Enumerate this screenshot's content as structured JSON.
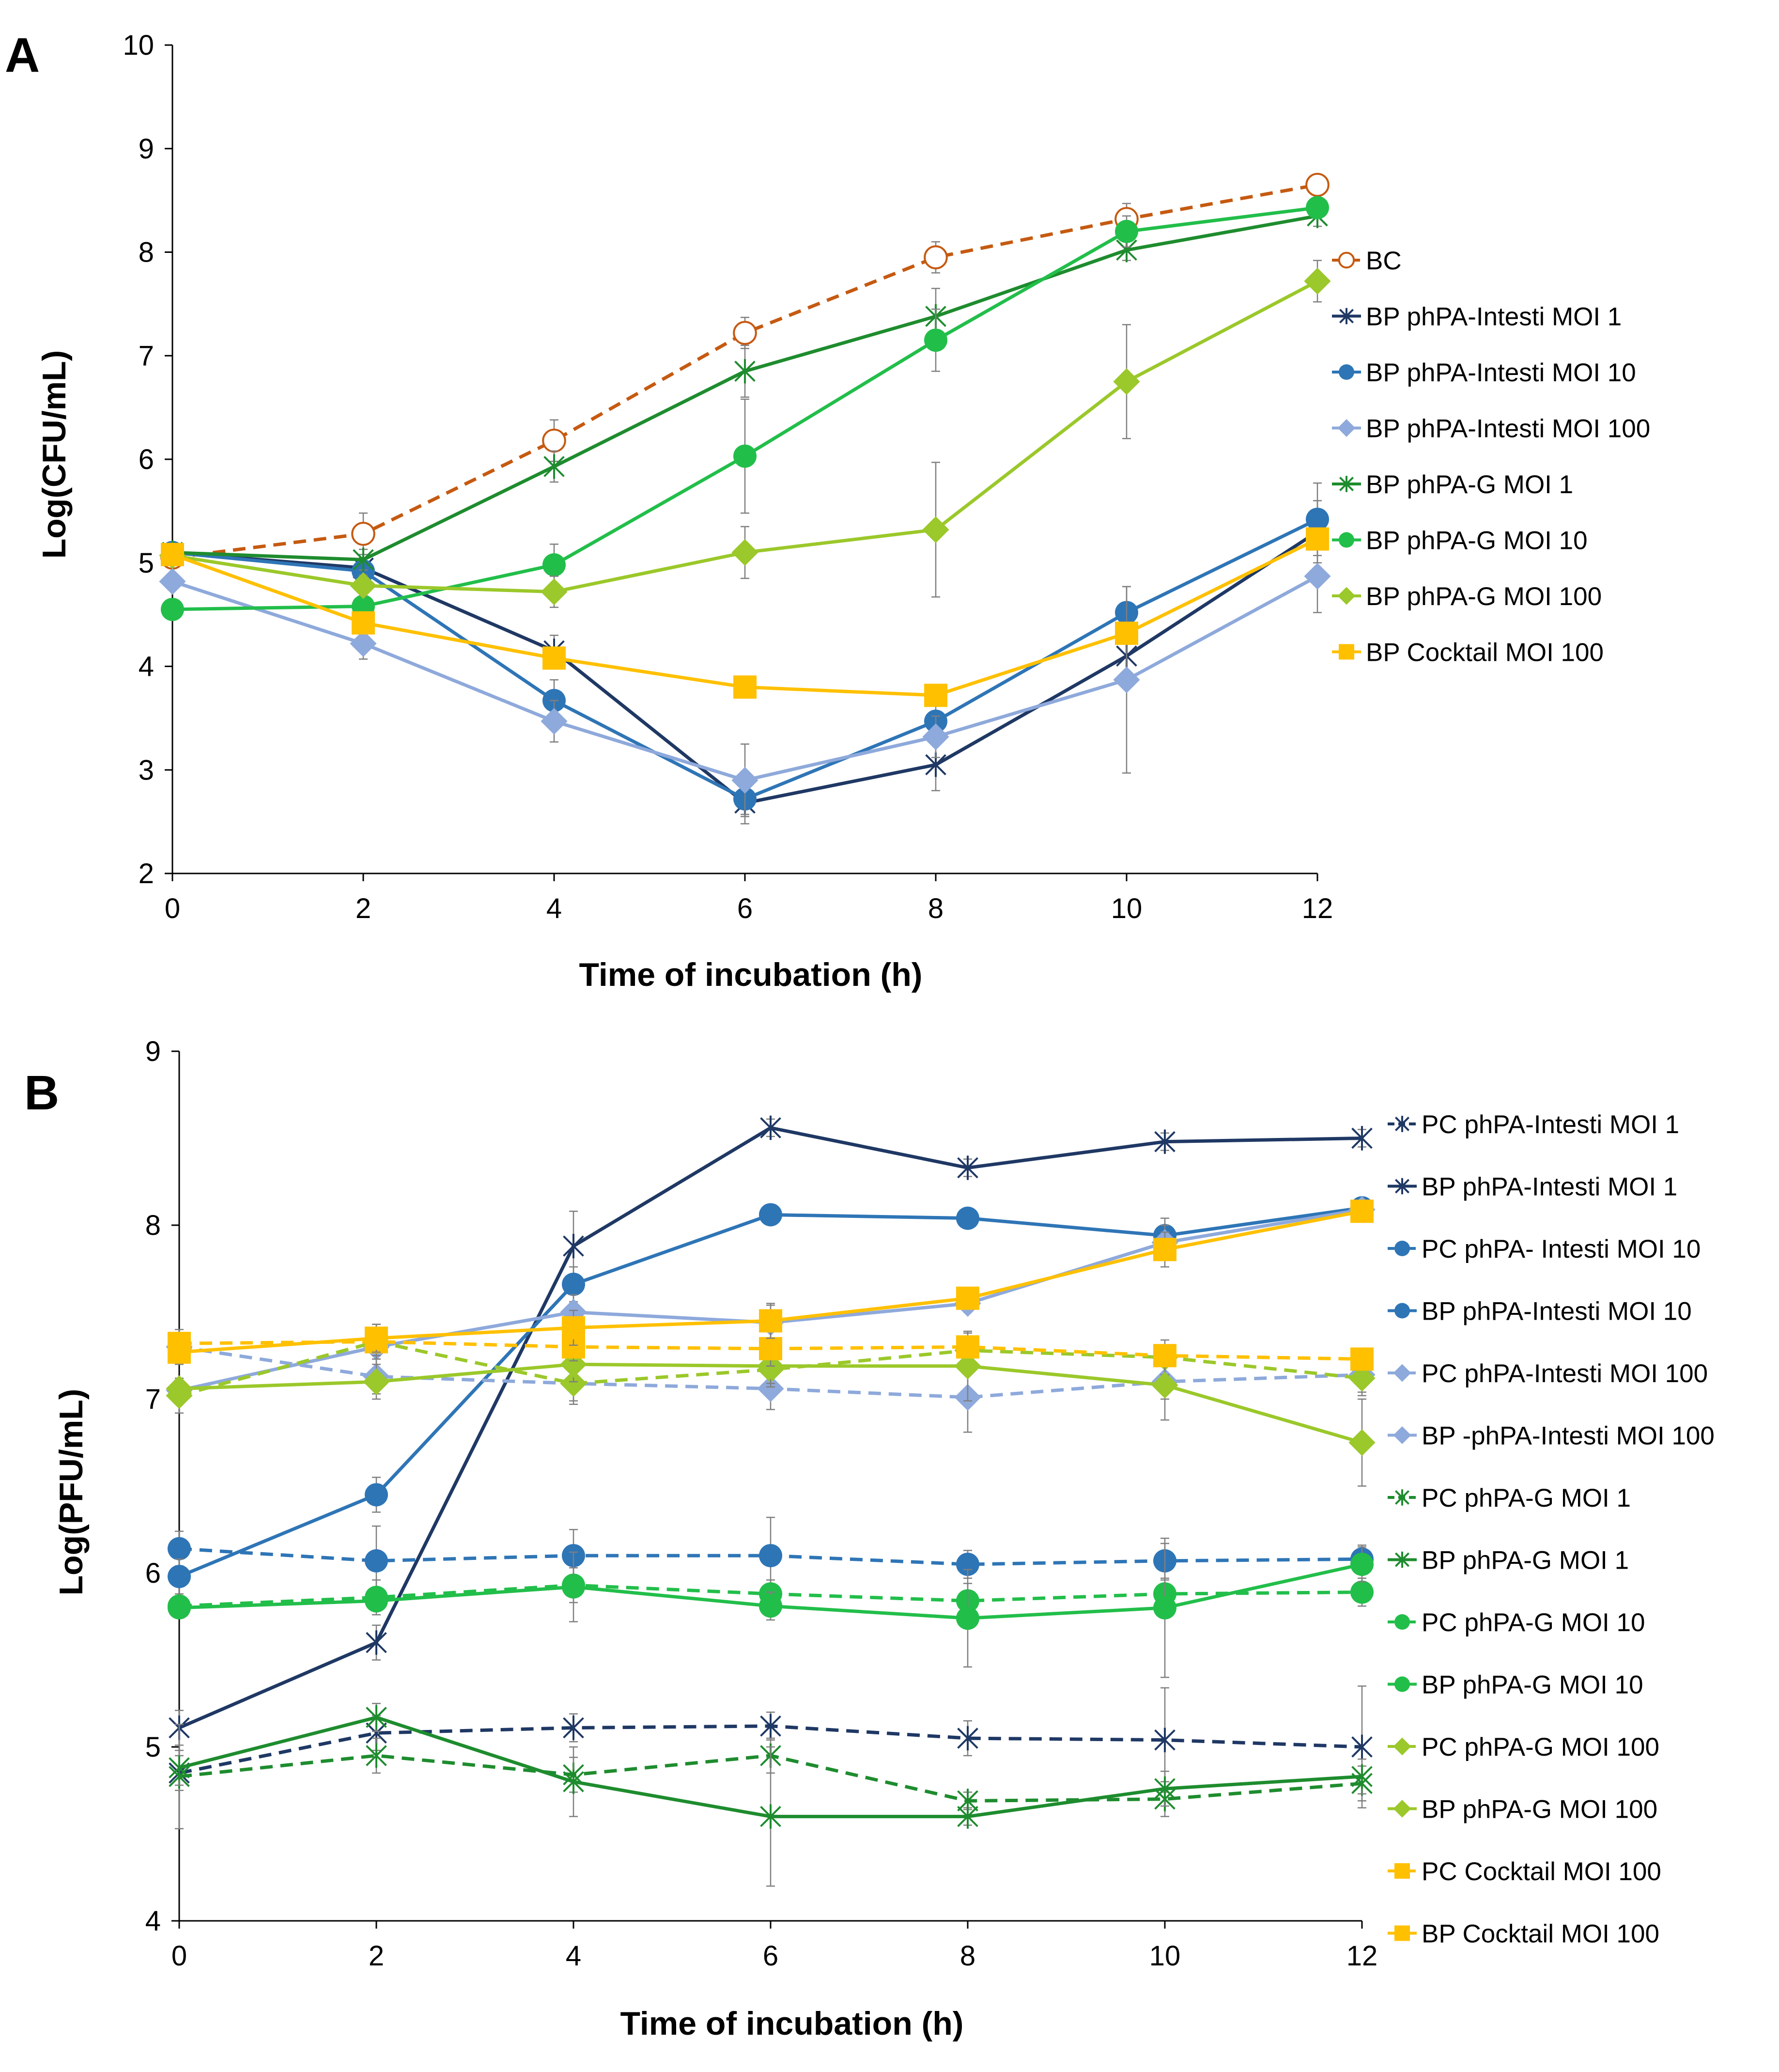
{
  "figure_title": "Phage kinetics figure",
  "chart_data": [
    {
      "panel_label": "A",
      "type": "line",
      "xlabel": "Time of incubation (h)",
      "ylabel": "Log(CFU/mL)",
      "x": [
        0,
        2,
        4,
        6,
        8,
        10,
        12
      ],
      "xlim": [
        0,
        12
      ],
      "ylim": [
        2,
        10
      ],
      "xticks": [
        "0",
        "2",
        "4",
        "6",
        "8",
        "10",
        "12"
      ],
      "yticks": [
        "2",
        "3",
        "4",
        "5",
        "6",
        "7",
        "8",
        "9",
        "10"
      ],
      "legend_position": "right",
      "series": [
        {
          "name": "BC",
          "color": "#C55A11",
          "dash": true,
          "marker": "open-circle",
          "values": [
            5.05,
            5.28,
            6.18,
            7.22,
            7.95,
            8.32,
            8.65
          ],
          "errors": [
            0.05,
            0.2,
            0.2,
            0.15,
            0.15,
            0.15,
            0.1
          ]
        },
        {
          "name": "BP phPA-Intesti MOI 1",
          "color": "#1F3864",
          "dash": false,
          "marker": "asterisk",
          "values": [
            5.1,
            4.95,
            4.15,
            2.68,
            3.05,
            4.1,
            5.3
          ],
          "errors": [
            0.05,
            0.1,
            0.15,
            0.2,
            0.25,
            0.3,
            0.3
          ]
        },
        {
          "name": "BP phPA-Intesti MOI 10",
          "color": "#2E75B6",
          "dash": false,
          "marker": "circle",
          "values": [
            5.1,
            4.92,
            3.67,
            2.72,
            3.47,
            4.52,
            5.42
          ],
          "errors": [
            0.05,
            0.1,
            0.2,
            0.15,
            0.15,
            0.25,
            0.35
          ]
        },
        {
          "name": "BP phPA-Intesti MOI 100",
          "color": "#8EA9DB",
          "dash": false,
          "marker": "diamond",
          "values": [
            4.82,
            4.22,
            3.47,
            2.9,
            3.32,
            3.87,
            4.87
          ],
          "errors": [
            0.05,
            0.15,
            0.2,
            0.35,
            0.2,
            0.9,
            0.35
          ]
        },
        {
          "name": "BP phPA-G MOI 1",
          "color": "#1E8C2E",
          "dash": false,
          "marker": "asterisk",
          "values": [
            5.1,
            5.03,
            5.93,
            6.85,
            7.38,
            8.02,
            8.35
          ],
          "errors": [
            0.05,
            0.1,
            0.15,
            0.25,
            0.27,
            0.1,
            0.1
          ]
        },
        {
          "name": "BP phPA-G MOI 10",
          "color": "#22BE4A",
          "dash": false,
          "marker": "circle",
          "values": [
            4.55,
            4.58,
            4.98,
            6.03,
            7.15,
            8.2,
            8.43
          ],
          "errors": [
            0.05,
            0.1,
            0.2,
            0.55,
            0.3,
            0.15,
            0.1
          ]
        },
        {
          "name": "BP phPA-G MOI 100",
          "color": "#9BC82A",
          "dash": false,
          "marker": "diamond",
          "values": [
            5.07,
            4.78,
            4.72,
            5.1,
            5.32,
            6.75,
            7.72
          ],
          "errors": [
            0.05,
            0.1,
            0.15,
            0.25,
            0.65,
            0.55,
            0.2
          ]
        },
        {
          "name": "BP Cocktail MOI 100",
          "color": "#FFC000",
          "dash": false,
          "marker": "square",
          "values": [
            5.08,
            4.42,
            4.08,
            3.8,
            3.72,
            4.32,
            5.23
          ],
          "errors": [
            0.05,
            0.1,
            0.1,
            0.05,
            0.05,
            0.1,
            0.1
          ]
        }
      ]
    },
    {
      "panel_label": "B",
      "type": "line",
      "xlabel": "Time of incubation (h)",
      "ylabel": "Log(PFU/mL)",
      "x": [
        0,
        2,
        4,
        6,
        8,
        10,
        12
      ],
      "xlim": [
        0,
        12
      ],
      "ylim": [
        4,
        9
      ],
      "xticks": [
        "0",
        "2",
        "4",
        "6",
        "8",
        "10",
        "12"
      ],
      "yticks": [
        "4",
        "5",
        "6",
        "7",
        "8",
        "9"
      ],
      "legend_position": "right",
      "series": [
        {
          "name": "PC phPA-Intesti MOI 1",
          "color": "#1F3864",
          "dash": true,
          "marker": "asterisk",
          "values": [
            4.85,
            5.08,
            5.11,
            5.12,
            5.05,
            5.04,
            5.0
          ],
          "errors": [
            0.1,
            0.1,
            0.08,
            0.08,
            0.1,
            0.3,
            0.35
          ]
        },
        {
          "name": "BP phPA-Intesti MOI 1",
          "color": "#1F3864",
          "dash": false,
          "marker": "asterisk",
          "values": [
            5.11,
            5.6,
            7.88,
            8.56,
            8.33,
            8.48,
            8.5
          ],
          "errors": [
            0.1,
            0.1,
            0.2,
            0.05,
            0.05,
            0.05,
            0.05
          ]
        },
        {
          "name": "PC phPA- Intesti MOI 10",
          "color": "#2E75B6",
          "dash": true,
          "marker": "circle",
          "values": [
            6.14,
            6.07,
            6.1,
            6.1,
            6.05,
            6.07,
            6.08
          ],
          "errors": [
            0.1,
            0.2,
            0.15,
            0.22,
            0.08,
            0.1,
            0.08
          ]
        },
        {
          "name": "BP phPA-Intesti MOI 10",
          "color": "#2E75B6",
          "dash": false,
          "marker": "circle",
          "values": [
            5.98,
            6.45,
            7.66,
            8.06,
            8.04,
            7.94,
            8.1
          ],
          "errors": [
            0.1,
            0.1,
            0.1,
            0.05,
            0.05,
            0.1,
            0.05
          ]
        },
        {
          "name": "PC phPA-Intesti MOI 100",
          "color": "#8EA9DB",
          "dash": true,
          "marker": "diamond",
          "values": [
            7.3,
            7.13,
            7.09,
            7.06,
            7.01,
            7.1,
            7.14
          ],
          "errors": [
            0.1,
            0.1,
            0.1,
            0.12,
            0.2,
            0.1,
            0.1
          ]
        },
        {
          "name": "BP -phPA-Intesti MOI 100",
          "color": "#8EA9DB",
          "dash": false,
          "marker": "diamond",
          "values": [
            7.05,
            7.3,
            7.5,
            7.44,
            7.55,
            7.9,
            8.09
          ],
          "errors": [
            0.05,
            0.1,
            0.1,
            0.1,
            0.05,
            0.1,
            0.05
          ]
        },
        {
          "name": "PC phPA-G MOI 1",
          "color": "#1E8C2E",
          "dash": true,
          "marker": "asterisk",
          "values": [
            4.83,
            4.95,
            4.84,
            4.95,
            4.69,
            4.7,
            4.79
          ],
          "errors": [
            0.3,
            0.1,
            0.1,
            0.1,
            0.05,
            0.1,
            0.1
          ]
        },
        {
          "name": "BP phPA-G MOI 1",
          "color": "#1E8C2E",
          "dash": false,
          "marker": "asterisk",
          "values": [
            4.88,
            5.17,
            4.8,
            4.6,
            4.6,
            4.76,
            4.83
          ],
          "errors": [
            0.1,
            0.08,
            0.2,
            0.4,
            0.05,
            0.1,
            0.1
          ]
        },
        {
          "name": "PC phPA-G MOI 10",
          "color": "#22BE4A",
          "dash": true,
          "marker": "circle",
          "values": [
            5.81,
            5.86,
            5.93,
            5.88,
            5.84,
            5.88,
            5.89
          ],
          "errors": [
            0.05,
            0.1,
            0.1,
            0.08,
            0.1,
            0.08,
            0.08
          ]
        },
        {
          "name": "BP phPA-G MOI 10",
          "color": "#22BE4A",
          "dash": false,
          "marker": "circle",
          "values": [
            5.8,
            5.84,
            5.92,
            5.81,
            5.74,
            5.8,
            6.05
          ],
          "errors": [
            0.05,
            0.05,
            0.2,
            0.08,
            0.28,
            0.4,
            0.1
          ]
        },
        {
          "name": "PC phPA-G MOI 100",
          "color": "#9BC82A",
          "dash": true,
          "marker": "diamond",
          "values": [
            7.02,
            7.33,
            7.09,
            7.17,
            7.28,
            7.24,
            7.12
          ],
          "errors": [
            0.1,
            0.1,
            0.12,
            0.1,
            0.1,
            0.1,
            0.1
          ]
        },
        {
          "name": "BP phPA-G MOI 100",
          "color": "#9BC82A",
          "dash": false,
          "marker": "diamond",
          "values": [
            7.06,
            7.1,
            7.2,
            7.19,
            7.19,
            7.08,
            6.75
          ],
          "errors": [
            0.05,
            0.1,
            0.1,
            0.1,
            0.2,
            0.2,
            0.25
          ]
        },
        {
          "name": "PC Cocktail MOI 100",
          "color": "#FFC000",
          "dash": true,
          "marker": "square",
          "values": [
            7.32,
            7.33,
            7.3,
            7.29,
            7.3,
            7.25,
            7.23
          ],
          "errors": [
            0.05,
            0.08,
            0.08,
            0.1,
            0.05,
            0.05,
            0.05
          ]
        },
        {
          "name": "BP Cocktail MOI 100",
          "color": "#FFC000",
          "dash": false,
          "marker": "square",
          "values": [
            7.27,
            7.35,
            7.41,
            7.45,
            7.58,
            7.86,
            8.08
          ],
          "errors": [
            0.05,
            0.08,
            0.1,
            0.1,
            0.05,
            0.1,
            0.05
          ]
        }
      ]
    }
  ]
}
